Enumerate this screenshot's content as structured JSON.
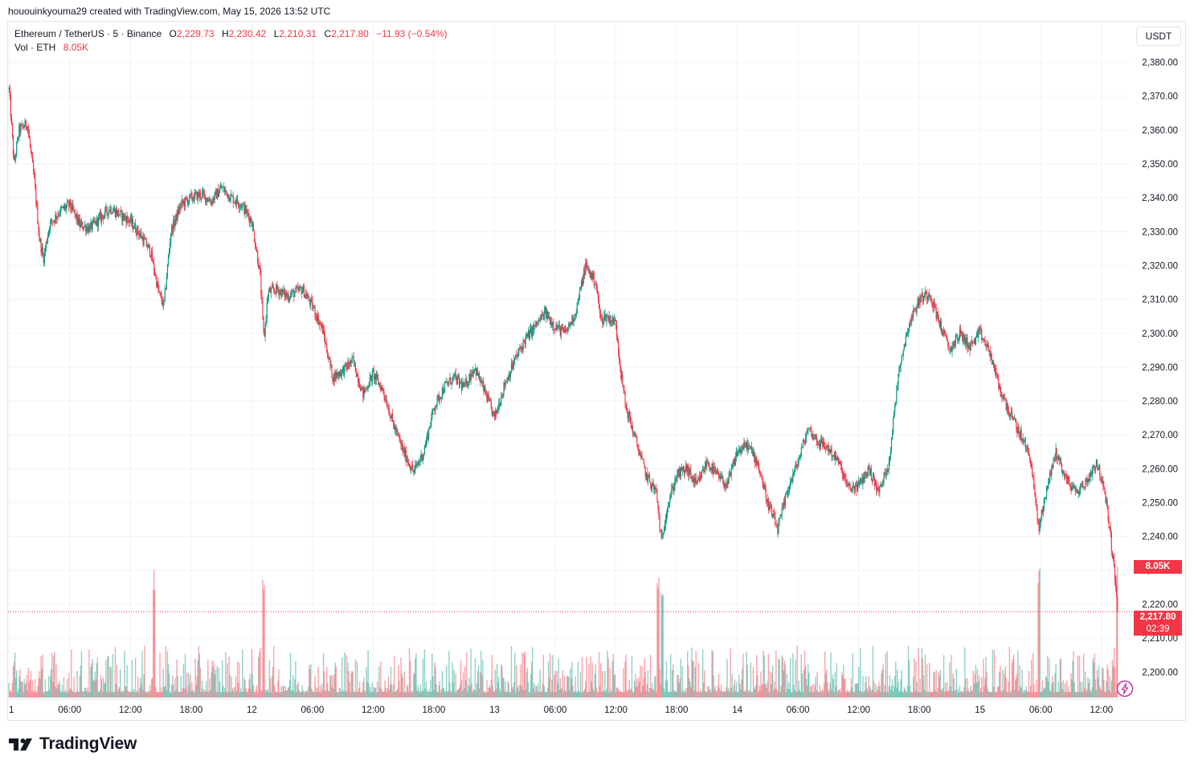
{
  "header": {
    "caption": "hououinkyouma29 created with TradingView.com, May 15, 2026 13:52 UTC"
  },
  "legend": {
    "symbol": "Ethereum / TetherUS · 5 · Binance",
    "o_label": "O",
    "o_value": "2,229.73",
    "h_label": "H",
    "h_value": "2,230.42",
    "l_label": "L",
    "l_value": "2,210.31",
    "c_label": "C",
    "c_value": "2,217.80",
    "change": "−11.93 (−0.54%)",
    "vol_label": "Vol · ETH",
    "vol_value": "8.05K"
  },
  "currency_button": "USDT",
  "tags": {
    "volume": "8.05K",
    "price": "2,217.80",
    "countdown": "02:39"
  },
  "logo": {
    "text": "TradingView"
  },
  "colors": {
    "up": "#089981",
    "down": "#f23645",
    "grid": "#f0f3fa",
    "axis_text": "#131722"
  },
  "chart_data": {
    "type": "candlestick",
    "symbol": "ETHUSDT",
    "interval": "5",
    "y_ticks": [
      2380,
      2370,
      2360,
      2350,
      2340,
      2330,
      2320,
      2310,
      2300,
      2290,
      2280,
      2270,
      2260,
      2250,
      2240,
      2230,
      2220,
      2210,
      2200
    ],
    "y_tick_labels": [
      "2,380.00",
      "2,370.00",
      "2,360.00",
      "2,350.00",
      "2,340.00",
      "2,330.00",
      "2,320.00",
      "2,310.00",
      "2,300.00",
      "2,290.00",
      "2,280.00",
      "2,270.00",
      "2,260.00",
      "2,250.00",
      "2,240.00",
      "2,230.00",
      "2,220.00",
      "2,210.00",
      "2,200.00"
    ],
    "ylim": [
      2192,
      2392
    ],
    "x_ticks": [
      {
        "label": "1",
        "t": 0
      },
      {
        "label": "06:00",
        "t": 6
      },
      {
        "label": "12:00",
        "t": 12
      },
      {
        "label": "18:00",
        "t": 18
      },
      {
        "label": "12",
        "t": 24
      },
      {
        "label": "06:00",
        "t": 30
      },
      {
        "label": "12:00",
        "t": 36
      },
      {
        "label": "18:00",
        "t": 42
      },
      {
        "label": "13",
        "t": 48
      },
      {
        "label": "06:00",
        "t": 54
      },
      {
        "label": "12:00",
        "t": 60
      },
      {
        "label": "18:00",
        "t": 66
      },
      {
        "label": "14",
        "t": 72
      },
      {
        "label": "06:00",
        "t": 78
      },
      {
        "label": "12:00",
        "t": 84
      },
      {
        "label": "18:00",
        "t": 90
      },
      {
        "label": "15",
        "t": 96
      },
      {
        "label": "06:00",
        "t": 102
      },
      {
        "label": "12:00",
        "t": 108
      }
    ],
    "xlim_hours": [
      -0.1,
      110.8
    ],
    "close_path": [
      [
        0,
        2372
      ],
      [
        0.5,
        2350
      ],
      [
        1,
        2360
      ],
      [
        1.8,
        2362
      ],
      [
        2.5,
        2345
      ],
      [
        3,
        2328
      ],
      [
        3.4,
        2322
      ],
      [
        4,
        2332
      ],
      [
        5,
        2336
      ],
      [
        6,
        2338
      ],
      [
        7,
        2332
      ],
      [
        8,
        2331
      ],
      [
        9,
        2334
      ],
      [
        10,
        2337
      ],
      [
        11,
        2335
      ],
      [
        12,
        2333
      ],
      [
        13,
        2329
      ],
      [
        14,
        2324
      ],
      [
        14.8,
        2312
      ],
      [
        15.3,
        2308
      ],
      [
        16,
        2330
      ],
      [
        17,
        2338
      ],
      [
        18,
        2340
      ],
      [
        19,
        2341
      ],
      [
        20,
        2339
      ],
      [
        21,
        2343
      ],
      [
        22,
        2340
      ],
      [
        23,
        2338
      ],
      [
        24,
        2333
      ],
      [
        24.8,
        2318
      ],
      [
        25.2,
        2298
      ],
      [
        25.6,
        2312
      ],
      [
        26.5,
        2313
      ],
      [
        27.5,
        2311
      ],
      [
        29,
        2313
      ],
      [
        30,
        2308
      ],
      [
        31,
        2301
      ],
      [
        32,
        2287
      ],
      [
        33,
        2289
      ],
      [
        34,
        2292
      ],
      [
        35,
        2282
      ],
      [
        36,
        2288
      ],
      [
        37,
        2283
      ],
      [
        38,
        2273
      ],
      [
        39,
        2265
      ],
      [
        40,
        2259
      ],
      [
        41,
        2265
      ],
      [
        42,
        2278
      ],
      [
        43,
        2284
      ],
      [
        44,
        2287
      ],
      [
        45,
        2284
      ],
      [
        46,
        2290
      ],
      [
        47,
        2283
      ],
      [
        48,
        2275
      ],
      [
        49,
        2285
      ],
      [
        50,
        2292
      ],
      [
        51,
        2298
      ],
      [
        52,
        2302
      ],
      [
        53,
        2306
      ],
      [
        54,
        2302
      ],
      [
        55,
        2300
      ],
      [
        56,
        2306
      ],
      [
        57,
        2320
      ],
      [
        58,
        2315
      ],
      [
        58.5,
        2304
      ],
      [
        59,
        2305
      ],
      [
        60,
        2303
      ],
      [
        60.5,
        2288
      ],
      [
        61,
        2278
      ],
      [
        62,
        2268
      ],
      [
        63,
        2258
      ],
      [
        64,
        2253
      ],
      [
        64.5,
        2238
      ],
      [
        65,
        2248
      ],
      [
        66,
        2258
      ],
      [
        67,
        2260
      ],
      [
        68,
        2255
      ],
      [
        69,
        2262
      ],
      [
        70,
        2258
      ],
      [
        71,
        2255
      ],
      [
        72,
        2265
      ],
      [
        73,
        2267
      ],
      [
        74,
        2262
      ],
      [
        75,
        2250
      ],
      [
        76,
        2242
      ],
      [
        77,
        2254
      ],
      [
        78,
        2262
      ],
      [
        79,
        2272
      ],
      [
        80,
        2268
      ],
      [
        81,
        2266
      ],
      [
        82,
        2262
      ],
      [
        83,
        2254
      ],
      [
        84,
        2255
      ],
      [
        85,
        2260
      ],
      [
        86,
        2253
      ],
      [
        87,
        2262
      ],
      [
        88,
        2290
      ],
      [
        89,
        2303
      ],
      [
        90,
        2310
      ],
      [
        91,
        2312
      ],
      [
        92,
        2303
      ],
      [
        93,
        2295
      ],
      [
        94,
        2300
      ],
      [
        95,
        2296
      ],
      [
        96,
        2300
      ],
      [
        97,
        2294
      ],
      [
        98,
        2283
      ],
      [
        99,
        2276
      ],
      [
        100,
        2270
      ],
      [
        101,
        2263
      ],
      [
        101.8,
        2242
      ],
      [
        102.5,
        2253
      ],
      [
        103.5,
        2265
      ],
      [
        104.5,
        2257
      ],
      [
        105.5,
        2253
      ],
      [
        106.5,
        2256
      ],
      [
        107.5,
        2262
      ],
      [
        108,
        2257
      ],
      [
        108.6,
        2248
      ],
      [
        109.2,
        2232
      ],
      [
        109.6,
        2218
      ]
    ],
    "volume_spikes_hours": [
      14.3,
      25.2,
      64.2,
      64.6,
      101.8,
      109.6
    ],
    "last_price": 2217.8,
    "last_volume": "8.05K"
  }
}
